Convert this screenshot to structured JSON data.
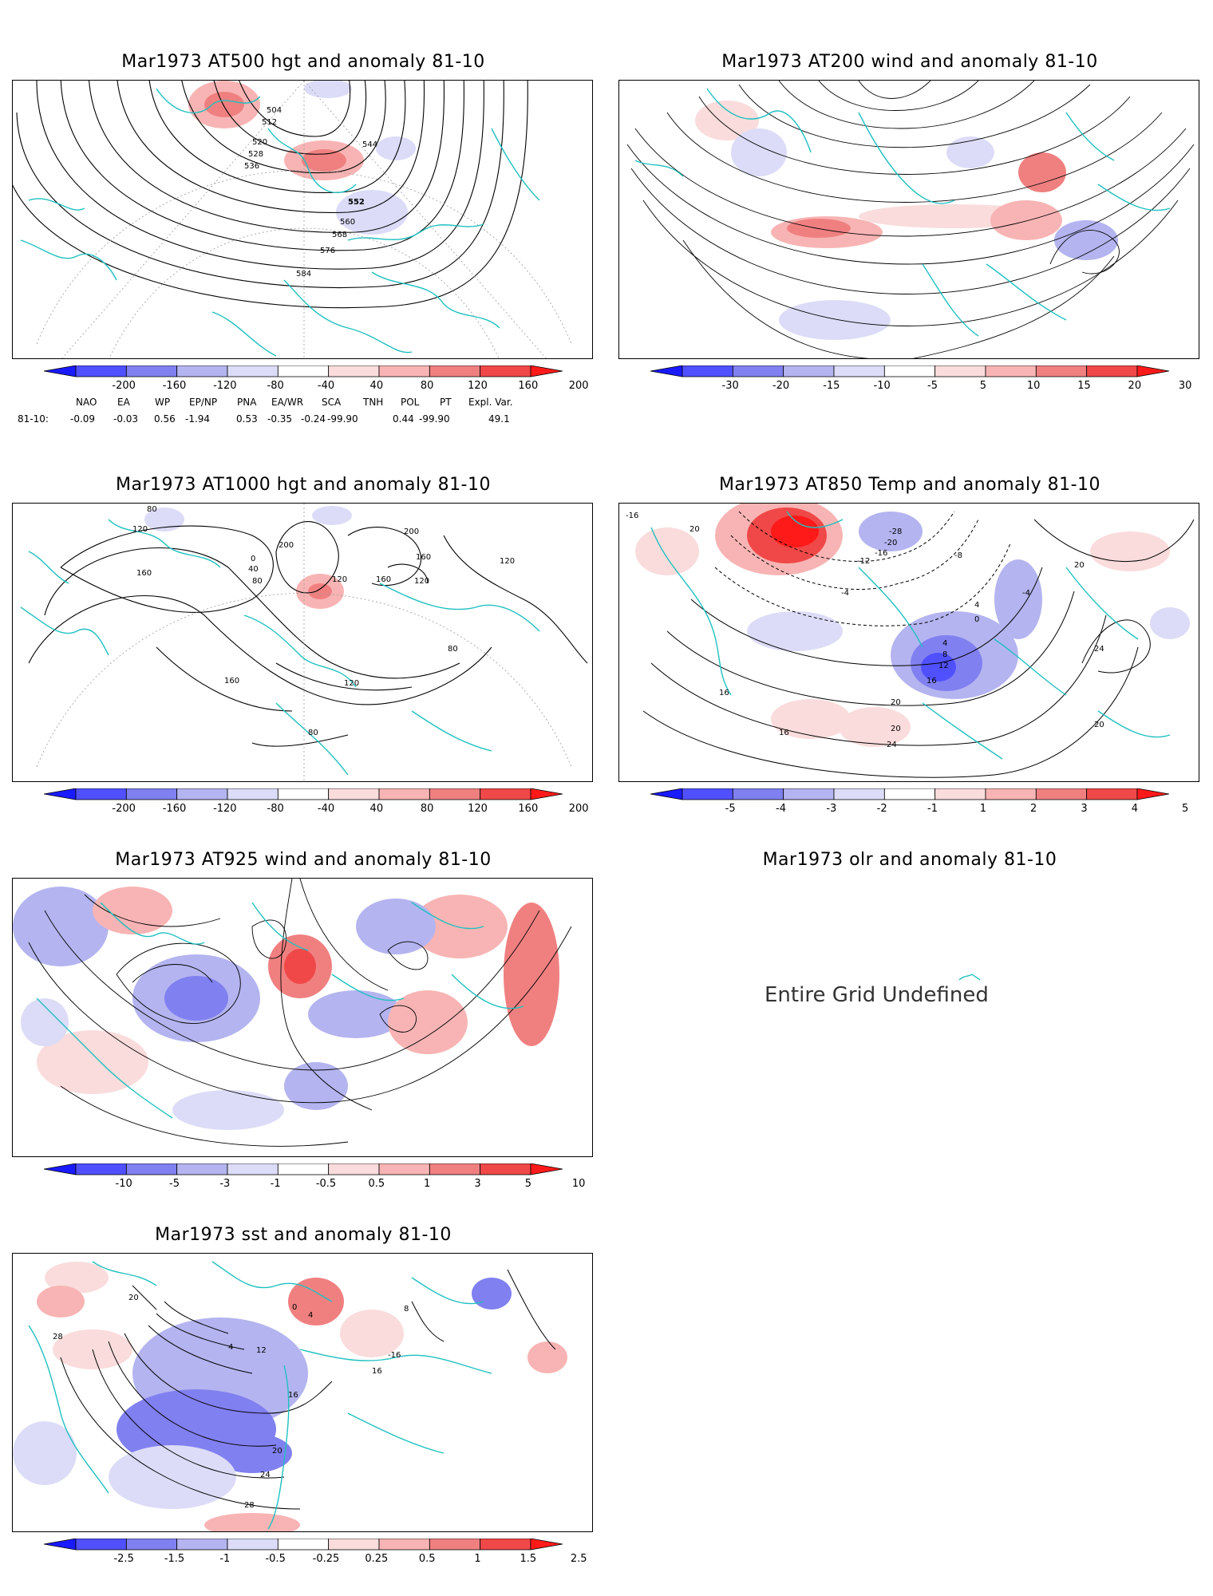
{
  "panels": [
    {
      "id": "p1",
      "title": "Mar1973 AT500 hgt and anomaly 81-10",
      "contour_labels": [
        "504",
        "512",
        "520",
        "528",
        "536",
        "544",
        "552",
        "560",
        "568",
        "576",
        "584"
      ],
      "colorbar": [
        "-200",
        "-160",
        "-120",
        "-80",
        "-40",
        "40",
        "80",
        "120",
        "160",
        "200"
      ]
    },
    {
      "id": "p2",
      "title": "Mar1973 AT200 wind and anomaly 81-10",
      "contour_labels": [],
      "colorbar": [
        "-30",
        "-20",
        "-15",
        "-10",
        "-5",
        "5",
        "10",
        "15",
        "20",
        "30"
      ]
    },
    {
      "id": "p3",
      "title": "Mar1973 AT1000 hgt and anomaly 81-10",
      "contour_labels": [
        "80",
        "120",
        "160",
        "200",
        "0",
        "40",
        "80",
        "120",
        "160",
        "120",
        "80",
        "160",
        "120",
        "80",
        "200",
        "160",
        "120"
      ],
      "colorbar": [
        "-200",
        "-160",
        "-120",
        "-80",
        "-40",
        "40",
        "80",
        "120",
        "160",
        "200"
      ]
    },
    {
      "id": "p4",
      "title": "Mar1973 AT850 Temp and anomaly 81-10",
      "contour_labels": [
        "-16",
        "20",
        "-28",
        "-20",
        "-16",
        "-12",
        "-8",
        "-4",
        "4",
        "0",
        "-4",
        "4",
        "8",
        "12",
        "16",
        "20",
        "24",
        "20",
        "24",
        "20",
        "16",
        "16",
        "20"
      ],
      "colorbar": [
        "-5",
        "-4",
        "-3",
        "-2",
        "-1",
        "1",
        "2",
        "3",
        "4",
        "5"
      ]
    },
    {
      "id": "p5",
      "title": "Mar1973 AT925 wind and anomaly 81-10",
      "contour_labels": [],
      "colorbar": [
        "-10",
        "-5",
        "-3",
        "-1",
        "-0.5",
        "0.5",
        "1",
        "3",
        "5",
        "10"
      ]
    },
    {
      "id": "p6",
      "title": "Mar1973 olr and anomaly 81-10",
      "message": "Entire Grid Undefined"
    },
    {
      "id": "p7",
      "title": "Mar1973 sst and anomaly 81-10",
      "contour_labels": [
        "20",
        "28",
        "4",
        "12",
        "16",
        "20",
        "24",
        "28",
        "16",
        "-16",
        "4",
        "0",
        "8"
      ],
      "colorbar": [
        "-2.5",
        "-1.5",
        "-1",
        "-0.5",
        "-0.25",
        "0.25",
        "0.5",
        "1",
        "1.5",
        "2.5"
      ]
    }
  ],
  "teleconnections": {
    "header": [
      "NAO",
      "EA",
      "WP",
      "EP/NP",
      "PNA",
      "EA/WR",
      "SCA",
      "TNH",
      "POL",
      "PT",
      "Expl. Var."
    ],
    "row_label": "81-10:",
    "values": [
      "-0.09",
      "-0.03",
      "0.56",
      "-1.94",
      "0.53",
      "-0.35",
      "-0.24",
      "-99.90",
      "0.44",
      "-99.90",
      "49.1"
    ]
  },
  "colors": {
    "coast": "#20c0c0",
    "contour": "#000000",
    "neg": [
      "#1a1aff",
      "#5050ff",
      "#8080f0",
      "#b4b4f0",
      "#dcdcf8"
    ],
    "pos": [
      "#fadcdc",
      "#f8b4b4",
      "#f08080",
      "#f04848",
      "#ff1a1a"
    ]
  }
}
